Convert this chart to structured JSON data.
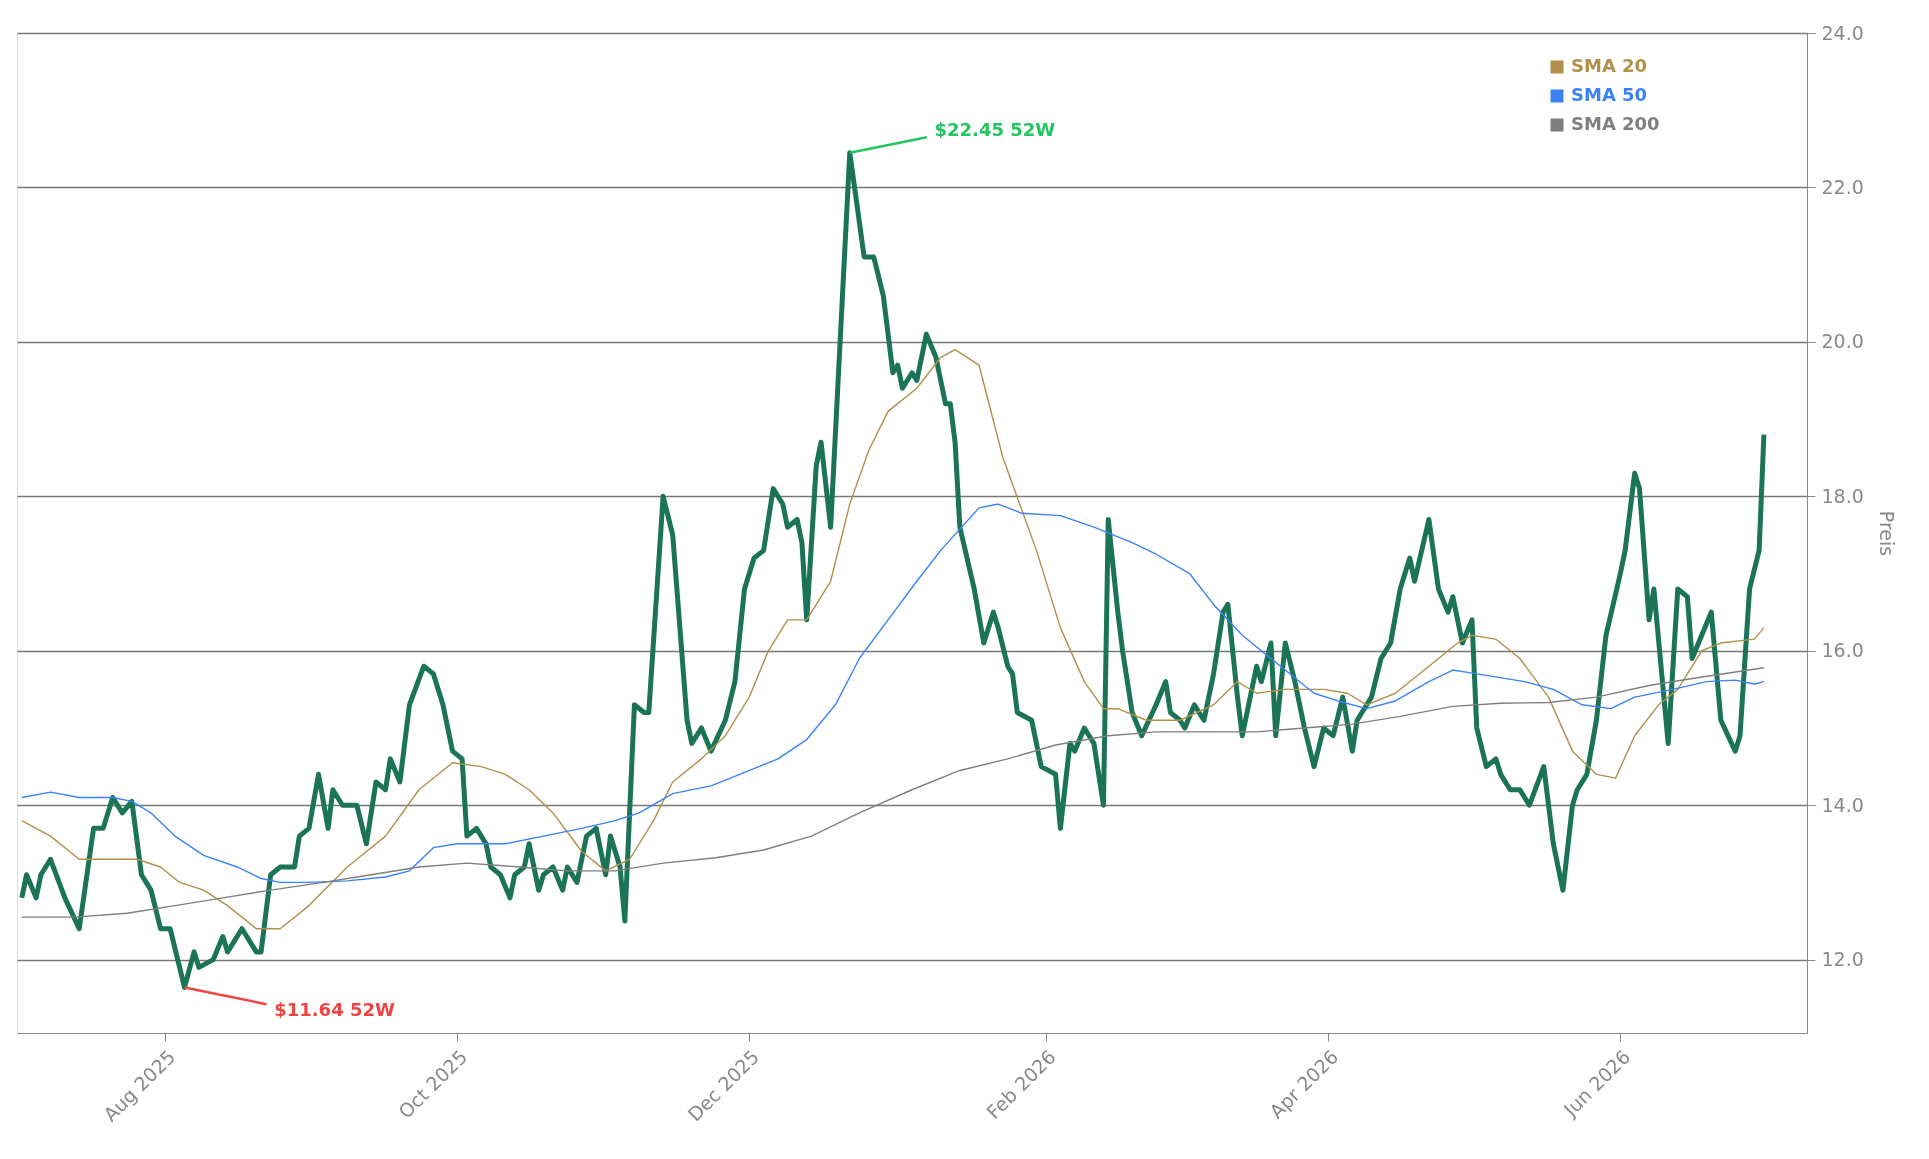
{
  "chart_data": {
    "type": "line",
    "ylabel": "Preis",
    "grid": "y",
    "legend": "top right",
    "xlim": [
      "2025-07-01",
      "2026-07-10"
    ],
    "xticks": [
      {
        "value": "2025-08-01",
        "label": "Aug 2025"
      },
      {
        "value": "2025-10-01",
        "label": "Oct 2025"
      },
      {
        "value": "2025-12-01",
        "label": "Dec 2025"
      },
      {
        "value": "2026-02-01",
        "label": "Feb 2026"
      },
      {
        "value": "2026-04-01",
        "label": "Apr 2026"
      },
      {
        "value": "2026-06-01",
        "label": "Jun 2026"
      }
    ],
    "ylim": [
      11.05,
      24
    ],
    "yticks": [
      {
        "value": 12,
        "label": "12.0"
      },
      {
        "value": 14,
        "label": "14.0"
      },
      {
        "value": 16,
        "label": "16.0"
      },
      {
        "value": 18,
        "label": "18.0"
      },
      {
        "value": 20,
        "label": "20.0"
      },
      {
        "value": 22,
        "label": "22.0"
      },
      {
        "value": 24,
        "label": "24.0"
      }
    ],
    "annotations": [
      {
        "text": "$22.45 52W",
        "x": "2025-12-22",
        "y": 22.45
      },
      {
        "text": "$11.64 52W",
        "x": "2025-08-05",
        "y": 11.64
      }
    ],
    "series": [
      {
        "color": "#1b7358",
        "x": [
          "2025-07-02",
          "2025-07-03",
          "2025-07-05",
          "2025-07-06",
          "2025-07-08",
          "2025-07-11",
          "2025-07-14",
          "2025-07-17",
          "2025-07-19",
          "2025-07-21",
          "2025-07-23",
          "2025-07-25",
          "2025-07-27",
          "2025-07-29",
          "2025-07-31",
          "2025-08-02",
          "2025-08-05",
          "2025-08-07",
          "2025-08-08",
          "2025-08-11",
          "2025-08-13",
          "2025-08-14",
          "2025-08-17",
          "2025-08-20",
          "2025-08-21",
          "2025-08-23",
          "2025-08-25",
          "2025-08-28",
          "2025-08-29",
          "2025-08-31",
          "2025-09-02",
          "2025-09-04",
          "2025-09-05",
          "2025-09-07",
          "2025-09-10",
          "2025-09-12",
          "2025-09-14",
          "2025-09-16",
          "2025-09-17",
          "2025-09-19",
          "2025-09-21",
          "2025-09-24",
          "2025-09-26",
          "2025-09-28",
          "2025-09-30",
          "2025-10-02",
          "2025-10-03",
          "2025-10-05",
          "2025-10-07",
          "2025-10-08",
          "2025-10-10",
          "2025-10-12",
          "2025-10-13",
          "2025-10-15",
          "2025-10-16",
          "2025-10-18",
          "2025-10-19",
          "2025-10-21",
          "2025-10-23",
          "2025-10-24",
          "2025-10-26",
          "2025-10-28",
          "2025-10-30",
          "2025-11-01",
          "2025-11-02",
          "2025-11-04",
          "2025-11-05",
          "2025-11-07",
          "2025-11-09",
          "2025-11-10",
          "2025-11-13",
          "2025-11-15",
          "2025-11-18",
          "2025-11-19",
          "2025-11-21",
          "2025-11-23",
          "2025-11-26",
          "2025-11-28",
          "2025-11-30",
          "2025-12-02",
          "2025-12-04",
          "2025-12-06",
          "2025-12-08",
          "2025-12-09",
          "2025-12-11",
          "2025-12-12",
          "2025-12-13",
          "2025-12-15",
          "2025-12-16",
          "2025-12-18",
          "2025-12-22",
          "2025-12-25",
          "2025-12-27",
          "2025-12-29",
          "2025-12-31",
          "2026-01-01",
          "2026-01-02",
          "2026-01-04",
          "2026-01-05",
          "2026-01-07",
          "2026-01-09",
          "2026-01-11",
          "2026-01-12",
          "2026-01-13",
          "2026-01-14",
          "2026-01-17",
          "2026-01-19",
          "2026-01-21",
          "2026-01-22",
          "2026-01-24",
          "2026-01-25",
          "2026-01-26",
          "2026-01-29",
          "2026-01-31",
          "2026-02-03",
          "2026-02-04",
          "2026-02-06",
          "2026-02-07",
          "2026-02-09",
          "2026-02-11",
          "2026-02-13",
          "2026-02-14",
          "2026-02-16",
          "2026-02-17",
          "2026-02-19",
          "2026-02-21",
          "2026-02-24",
          "2026-02-26",
          "2026-02-27",
          "2026-03-01",
          "2026-03-02",
          "2026-03-04",
          "2026-03-06",
          "2026-03-08",
          "2026-03-10",
          "2026-03-11",
          "2026-03-13",
          "2026-03-14",
          "2026-03-17",
          "2026-03-18",
          "2026-03-20",
          "2026-03-21",
          "2026-03-23",
          "2026-03-25",
          "2026-03-27",
          "2026-03-29",
          "2026-03-31",
          "2026-04-02",
          "2026-04-04",
          "2026-04-06",
          "2026-04-07",
          "2026-04-10",
          "2026-04-12",
          "2026-04-14",
          "2026-04-16",
          "2026-04-18",
          "2026-04-19",
          "2026-04-22",
          "2026-04-24",
          "2026-04-26",
          "2026-04-27",
          "2026-04-29",
          "2026-05-01",
          "2026-05-02",
          "2026-05-04",
          "2026-05-06",
          "2026-05-07",
          "2026-05-09",
          "2026-05-11",
          "2026-05-13",
          "2026-05-16",
          "2026-05-18",
          "2026-05-20",
          "2026-05-22",
          "2026-05-23",
          "2026-05-25",
          "2026-05-27",
          "2026-05-29",
          "2026-06-01",
          "2026-06-02",
          "2026-06-04",
          "2026-06-05",
          "2026-06-07",
          "2026-06-08",
          "2026-06-11",
          "2026-06-13",
          "2026-06-15",
          "2026-06-16",
          "2026-06-20",
          "2026-06-22",
          "2026-06-25",
          "2026-06-26",
          "2026-06-28",
          "2026-06-30",
          "2026-07-01"
        ],
        "values": [
          12.8,
          13.1,
          12.8,
          13.1,
          13.3,
          12.8,
          12.4,
          13.7,
          13.7,
          14.1,
          13.9,
          14.05,
          13.1,
          12.9,
          12.4,
          12.4,
          11.64,
          12.1,
          11.9,
          12.0,
          12.3,
          12.1,
          12.4,
          12.1,
          12.1,
          13.1,
          13.2,
          13.2,
          13.6,
          13.7,
          14.4,
          13.7,
          14.2,
          14.0,
          14.0,
          13.5,
          14.3,
          14.2,
          14.6,
          14.3,
          15.3,
          15.8,
          15.7,
          15.3,
          14.7,
          14.6,
          13.6,
          13.7,
          13.5,
          13.2,
          13.1,
          12.8,
          13.1,
          13.2,
          13.5,
          12.9,
          13.1,
          13.2,
          12.9,
          13.2,
          13.0,
          13.6,
          13.7,
          13.1,
          13.6,
          13.2,
          12.5,
          15.3,
          15.2,
          15.2,
          18.0,
          17.5,
          15.1,
          14.8,
          15.0,
          14.7,
          15.1,
          15.6,
          16.8,
          17.2,
          17.3,
          18.1,
          17.9,
          17.6,
          17.7,
          17.4,
          16.4,
          18.4,
          18.7,
          17.6,
          22.45,
          21.1,
          21.1,
          20.6,
          19.6,
          19.7,
          19.4,
          19.6,
          19.5,
          20.1,
          19.8,
          19.2,
          19.2,
          18.7,
          17.6,
          16.8,
          16.1,
          16.5,
          16.3,
          15.8,
          15.7,
          15.2,
          15.1,
          14.5,
          14.4,
          13.7,
          14.8,
          14.7,
          15.0,
          14.8,
          14.0,
          17.7,
          16.5,
          16.0,
          15.2,
          14.9,
          15.3,
          15.6,
          15.2,
          15.1,
          15.0,
          15.3,
          15.1,
          15.7,
          16.5,
          16.6,
          15.4,
          14.9,
          15.8,
          15.6,
          16.1,
          14.9,
          16.1,
          15.6,
          15.0,
          14.5,
          15.0,
          14.9,
          15.4,
          14.7,
          15.1,
          15.4,
          15.9,
          16.1,
          16.8,
          17.2,
          16.9,
          17.7,
          16.8,
          16.5,
          16.7,
          16.1,
          16.4,
          15.0,
          14.5,
          14.6,
          14.4,
          14.2,
          14.2,
          14.0,
          14.5,
          13.5,
          12.9,
          14.0,
          14.2,
          14.4,
          15.1,
          16.2,
          17.0,
          17.3,
          18.3,
          18.1,
          16.4,
          16.8,
          14.8,
          16.8,
          16.7,
          15.9,
          16.5,
          15.1,
          14.7,
          14.9,
          16.8,
          17.3,
          18.8
        ]
      },
      {
        "name": "SMA 20",
        "color": "#b0904a",
        "x": [
          "2025-07-02",
          "2025-07-08",
          "2025-07-14",
          "2025-07-21",
          "2025-07-26",
          "2025-07-31",
          "2025-08-04",
          "2025-08-09",
          "2025-08-14",
          "2025-08-20",
          "2025-08-25",
          "2025-08-31",
          "2025-09-08",
          "2025-09-16",
          "2025-09-23",
          "2025-09-30",
          "2025-10-06",
          "2025-10-11",
          "2025-10-16",
          "2025-10-21",
          "2025-10-27",
          "2025-11-01",
          "2025-11-06",
          "2025-11-11",
          "2025-11-15",
          "2025-11-21",
          "2025-11-26",
          "2025-12-01",
          "2025-12-05",
          "2025-12-09",
          "2025-12-13",
          "2025-12-18",
          "2025-12-22",
          "2025-12-26",
          "2025-12-30",
          "2026-01-05",
          "2026-01-10",
          "2026-01-13",
          "2026-01-18",
          "2026-01-23",
          "2026-01-30",
          "2026-02-04",
          "2026-02-09",
          "2026-02-13",
          "2026-02-16",
          "2026-02-22",
          "2026-03-01",
          "2026-03-08",
          "2026-03-13",
          "2026-03-17",
          "2026-03-23",
          "2026-03-31",
          "2026-04-05",
          "2026-04-09",
          "2026-04-15",
          "2026-04-22",
          "2026-04-28",
          "2026-05-01",
          "2026-05-06",
          "2026-05-11",
          "2026-05-17",
          "2026-05-22",
          "2026-05-27",
          "2026-05-31",
          "2026-06-04",
          "2026-06-09",
          "2026-06-13",
          "2026-06-18",
          "2026-06-22",
          "2026-06-29",
          "2026-07-01"
        ],
        "values": [
          13.8,
          13.6,
          13.3,
          13.3,
          13.3,
          13.2,
          13.0,
          12.9,
          12.7,
          12.4,
          12.4,
          12.7,
          13.2,
          13.6,
          14.2,
          14.55,
          14.5,
          14.4,
          14.2,
          13.9,
          13.4,
          13.15,
          13.3,
          13.8,
          14.3,
          14.6,
          14.9,
          15.4,
          16.0,
          16.4,
          16.4,
          16.9,
          17.9,
          18.6,
          19.1,
          19.4,
          19.8,
          19.9,
          19.7,
          18.5,
          17.3,
          16.3,
          15.6,
          15.25,
          15.25,
          15.1,
          15.1,
          15.3,
          15.6,
          15.45,
          15.5,
          15.5,
          15.45,
          15.3,
          15.45,
          15.8,
          16.1,
          16.2,
          16.15,
          15.9,
          15.4,
          14.7,
          14.4,
          14.35,
          14.9,
          15.3,
          15.5,
          16.0,
          16.1,
          16.15,
          16.3
        ]
      },
      {
        "name": "SMA 50",
        "color": "#3b82f6",
        "x": [
          "2025-07-02",
          "2025-07-08",
          "2025-07-14",
          "2025-07-21",
          "2025-07-25",
          "2025-07-29",
          "2025-08-03",
          "2025-08-09",
          "2025-08-16",
          "2025-08-21",
          "2025-08-25",
          "2025-08-31",
          "2025-09-08",
          "2025-09-16",
          "2025-09-21",
          "2025-09-26",
          "2025-10-01",
          "2025-10-11",
          "2025-10-19",
          "2025-10-27",
          "2025-11-03",
          "2025-11-08",
          "2025-11-15",
          "2025-11-23",
          "2025-11-29",
          "2025-12-07",
          "2025-12-13",
          "2025-12-19",
          "2025-12-24",
          "2025-12-30",
          "2026-01-05",
          "2026-01-10",
          "2026-01-18",
          "2026-01-22",
          "2026-01-27",
          "2026-02-04",
          "2026-02-11",
          "2026-02-19",
          "2026-02-24",
          "2026-03-03",
          "2026-03-08",
          "2026-03-14",
          "2026-03-22",
          "2026-03-29",
          "2026-04-03",
          "2026-04-09",
          "2026-04-15",
          "2026-04-22",
          "2026-04-27",
          "2026-05-02",
          "2026-05-12",
          "2026-05-18",
          "2026-05-24",
          "2026-05-30",
          "2026-06-04",
          "2026-06-12",
          "2026-06-19",
          "2026-06-25",
          "2026-06-29",
          "2026-07-01"
        ],
        "values": [
          14.1,
          14.17,
          14.1,
          14.1,
          14.05,
          13.9,
          13.6,
          13.35,
          13.2,
          13.05,
          13.0,
          13.0,
          13.02,
          13.07,
          13.15,
          13.45,
          13.5,
          13.5,
          13.6,
          13.7,
          13.8,
          13.9,
          14.15,
          14.25,
          14.4,
          14.6,
          14.85,
          15.3,
          15.9,
          16.4,
          16.9,
          17.3,
          17.85,
          17.9,
          17.78,
          17.75,
          17.6,
          17.4,
          17.25,
          17.0,
          16.6,
          16.2,
          15.8,
          15.45,
          15.35,
          15.25,
          15.35,
          15.6,
          15.75,
          15.7,
          15.6,
          15.5,
          15.3,
          15.25,
          15.4,
          15.5,
          15.6,
          15.62,
          15.57,
          15.6
        ]
      },
      {
        "name": "SMA 200",
        "color": "#7f7f7f",
        "x": [
          "2025-07-02",
          "2025-07-13",
          "2025-07-24",
          "2025-08-03",
          "2025-08-13",
          "2025-08-23",
          "2025-09-03",
          "2025-09-13",
          "2025-09-23",
          "2025-10-03",
          "2025-10-14",
          "2025-10-24",
          "2025-11-03",
          "2025-11-13",
          "2025-11-24",
          "2025-12-04",
          "2025-12-14",
          "2025-12-24",
          "2026-01-04",
          "2026-01-14",
          "2026-01-24",
          "2026-02-03",
          "2026-02-14",
          "2026-02-24",
          "2026-03-06",
          "2026-03-17",
          "2026-03-27",
          "2026-04-06",
          "2026-04-16",
          "2026-04-27",
          "2026-05-07",
          "2026-05-17",
          "2026-05-27",
          "2026-06-07",
          "2026-06-17",
          "2026-07-01"
        ],
        "values": [
          12.55,
          12.55,
          12.6,
          12.7,
          12.8,
          12.9,
          13.0,
          13.1,
          13.2,
          13.25,
          13.2,
          13.15,
          13.15,
          13.25,
          13.32,
          13.42,
          13.6,
          13.9,
          14.2,
          14.45,
          14.6,
          14.78,
          14.9,
          14.95,
          14.95,
          14.95,
          15.0,
          15.05,
          15.15,
          15.28,
          15.32,
          15.33,
          15.4,
          15.55,
          15.65,
          15.78
        ]
      }
    ]
  }
}
